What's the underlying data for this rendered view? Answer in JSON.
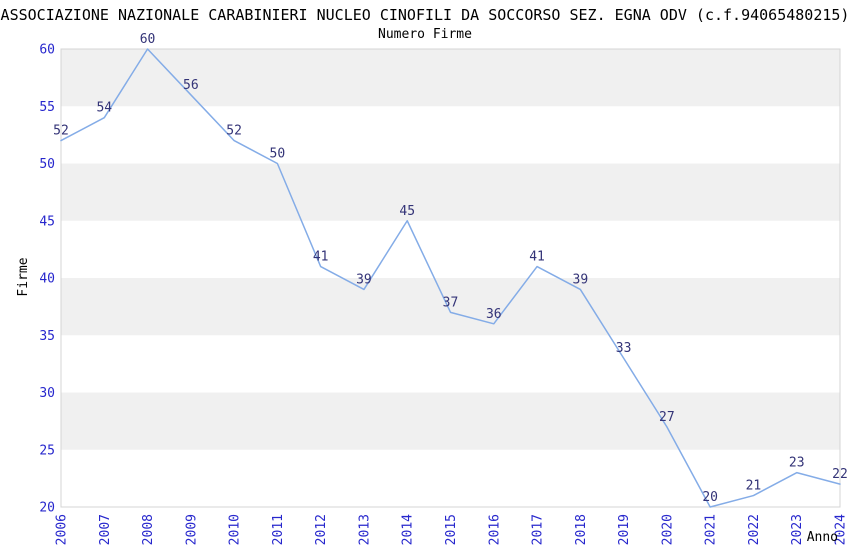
{
  "chart_data": {
    "type": "line",
    "title": "ASSOCIAZIONE NAZIONALE CARABINIERI NUCLEO CINOFILI DA SOCCORSO SEZ. EGNA ODV (c.f.94065480215)",
    "subtitle": "Numero Firme",
    "xlabel": "Anno",
    "ylabel": "Firme",
    "categories": [
      "2006",
      "2007",
      "2008",
      "2009",
      "2010",
      "2011",
      "2012",
      "2013",
      "2014",
      "2015",
      "2016",
      "2017",
      "2018",
      "2019",
      "2020",
      "2021",
      "2022",
      "2023",
      "2024"
    ],
    "series": [
      {
        "name": "Numero Firme",
        "values": [
          52,
          54,
          60,
          56,
          52,
          50,
          41,
          39,
          45,
          37,
          36,
          41,
          39,
          33,
          27,
          20,
          21,
          23,
          22
        ]
      }
    ],
    "ylim": [
      20,
      60
    ],
    "ytick_step": 5,
    "yticks": [
      20,
      25,
      30,
      35,
      40,
      45,
      50,
      55,
      60
    ],
    "grid": "alternating-horizontal-bands",
    "legend": "none",
    "data_labels": "above-points",
    "colors": {
      "line": "#84ace7",
      "tick_label": "#2727cd",
      "point_label": "#333377",
      "band_fill": "#f0f0f0",
      "plot_border": "#d4d4d4",
      "axis_title": "#000000",
      "background": "#ffffff"
    }
  }
}
